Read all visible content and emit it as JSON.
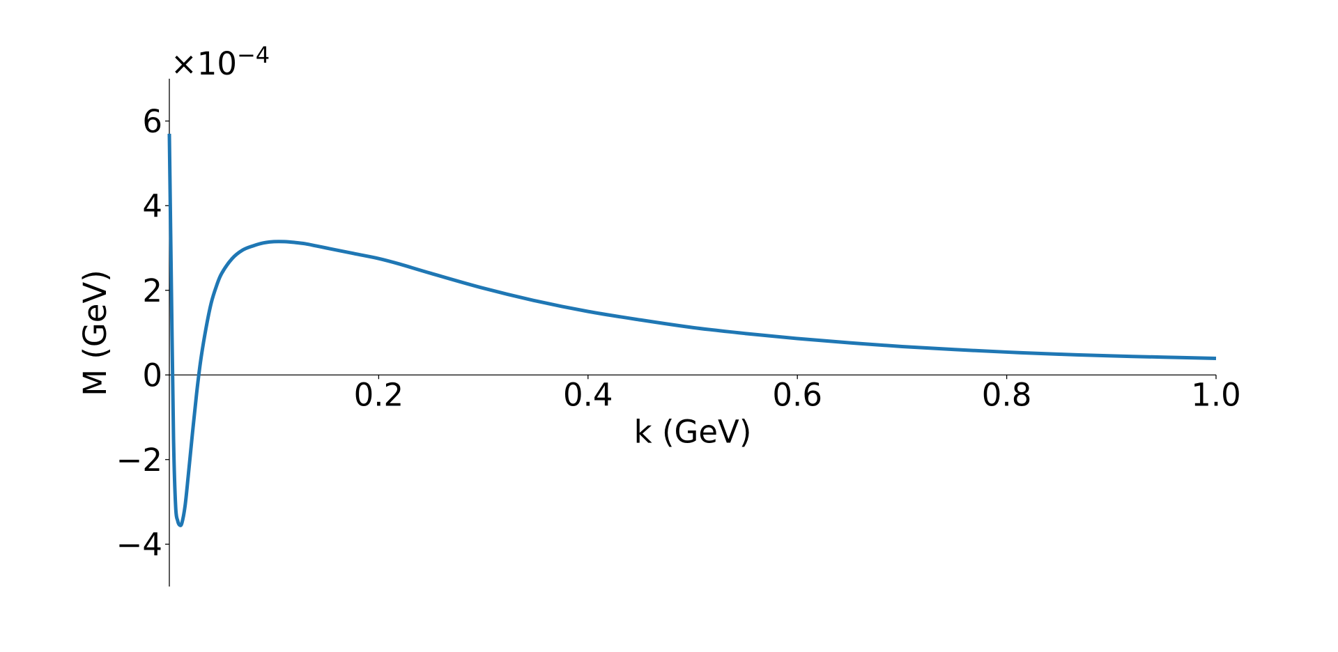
{
  "chart_data": {
    "type": "line",
    "title": "",
    "xlabel": "k (GeV)",
    "ylabel": "M (GeV)",
    "y_offset_text": "×10",
    "y_offset_exponent": "−4",
    "xlim": [
      0.0,
      1.0
    ],
    "ylim": [
      -5.0,
      7.0
    ],
    "x_ticks": [
      {
        "value": 0.2,
        "label": "0.2"
      },
      {
        "value": 0.4,
        "label": "0.4"
      },
      {
        "value": 0.6,
        "label": "0.6"
      },
      {
        "value": 0.8,
        "label": "0.8"
      },
      {
        "value": 1.0,
        "label": "1.0"
      }
    ],
    "y_ticks": [
      {
        "value": -4,
        "label": "−4"
      },
      {
        "value": -2,
        "label": "−2"
      },
      {
        "value": 0,
        "label": "0"
      },
      {
        "value": 2,
        "label": "2"
      },
      {
        "value": 4,
        "label": "4"
      },
      {
        "value": 6,
        "label": "6"
      }
    ],
    "grid": false,
    "line_color": "#1f77b4",
    "series": [
      {
        "x": [
          0.0,
          0.002,
          0.004,
          0.006,
          0.008,
          0.01,
          0.012,
          0.015,
          0.018,
          0.022,
          0.026,
          0.03,
          0.035,
          0.04,
          0.045,
          0.05,
          0.06,
          0.07,
          0.08,
          0.09,
          0.1,
          0.11,
          0.12,
          0.13,
          0.14,
          0.15,
          0.16,
          0.18,
          0.2,
          0.22,
          0.25,
          0.3,
          0.35,
          0.4,
          0.45,
          0.5,
          0.55,
          0.6,
          0.65,
          0.7,
          0.75,
          0.8,
          0.85,
          0.9,
          0.95,
          1.0
        ],
        "values": [
          5.7,
          2.0,
          -1.5,
          -3.1,
          -3.45,
          -3.55,
          -3.5,
          -3.1,
          -2.4,
          -1.4,
          -0.45,
          0.35,
          1.1,
          1.7,
          2.1,
          2.4,
          2.75,
          2.95,
          3.05,
          3.12,
          3.15,
          3.15,
          3.13,
          3.1,
          3.05,
          3.0,
          2.95,
          2.85,
          2.75,
          2.62,
          2.4,
          2.05,
          1.75,
          1.5,
          1.3,
          1.12,
          0.98,
          0.86,
          0.76,
          0.67,
          0.6,
          0.54,
          0.49,
          0.45,
          0.42,
          0.39
        ]
      }
    ]
  }
}
